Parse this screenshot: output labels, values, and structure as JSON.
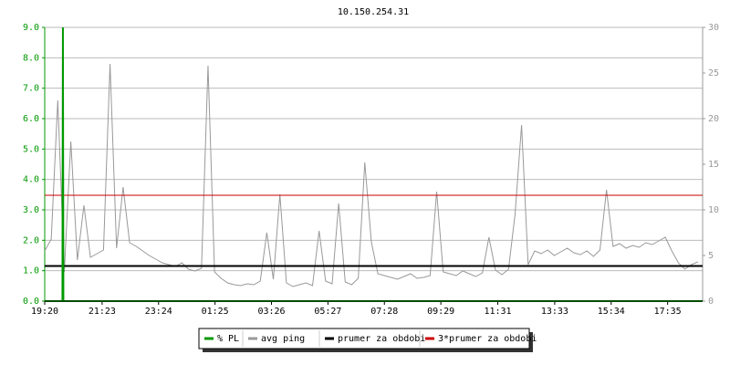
{
  "chart_data": {
    "type": "line",
    "title": "10.150.254.31",
    "xlim": [
      0,
      1410
    ],
    "xticks": [
      {
        "value": 0,
        "label": "19:20"
      },
      {
        "value": 123,
        "label": "21:23"
      },
      {
        "value": 244,
        "label": "23:24"
      },
      {
        "value": 365,
        "label": "01:25"
      },
      {
        "value": 486,
        "label": "03:26"
      },
      {
        "value": 607,
        "label": "05:27"
      },
      {
        "value": 728,
        "label": "07:28"
      },
      {
        "value": 849,
        "label": "09:29"
      },
      {
        "value": 971,
        "label": "11:31"
      },
      {
        "value": 1093,
        "label": "13:33"
      },
      {
        "value": 1214,
        "label": "15:34"
      },
      {
        "value": 1335,
        "label": "17:35"
      }
    ],
    "ylim": [
      0,
      9
    ],
    "yticks": [
      {
        "value": 0,
        "label": "0.0"
      },
      {
        "value": 1,
        "label": "1.0"
      },
      {
        "value": 2,
        "label": "2.0"
      },
      {
        "value": 3,
        "label": "3.0"
      },
      {
        "value": 4,
        "label": "4.0"
      },
      {
        "value": 5,
        "label": "5.0"
      },
      {
        "value": 6,
        "label": "6.0"
      },
      {
        "value": 7,
        "label": "7.0"
      },
      {
        "value": 8,
        "label": "8.0"
      },
      {
        "value": 9,
        "label": "9.0"
      }
    ],
    "y2lim": [
      0,
      30
    ],
    "y2ticks": [
      0,
      5,
      10,
      15,
      20,
      25,
      30
    ],
    "grid": true,
    "series": [
      {
        "name": "% PL",
        "color": "#009900",
        "x": [
          0,
          38,
          39,
          40,
          1410
        ],
        "values": [
          0,
          0,
          9,
          0,
          0
        ]
      },
      {
        "name": "avg ping",
        "color": "#999999",
        "axis": "y2",
        "x": [
          0,
          14,
          28,
          42,
          56,
          70,
          84,
          98,
          112,
          126,
          140,
          154,
          168,
          182,
          196,
          210,
          224,
          238,
          252,
          266,
          280,
          294,
          308,
          322,
          336,
          350,
          364,
          378,
          392,
          406,
          420,
          434,
          448,
          462,
          476,
          490,
          504,
          518,
          532,
          546,
          560,
          574,
          588,
          602,
          616,
          630,
          644,
          658,
          672,
          686,
          700,
          714,
          728,
          742,
          756,
          770,
          784,
          798,
          812,
          826,
          840,
          854,
          868,
          882,
          896,
          910,
          924,
          938,
          952,
          966,
          980,
          994,
          1008,
          1022,
          1036,
          1050,
          1064,
          1078,
          1092,
          1106,
          1120,
          1134,
          1148,
          1162,
          1176,
          1190,
          1204,
          1218,
          1232,
          1246,
          1260,
          1274,
          1288,
          1302,
          1316,
          1330,
          1344,
          1358,
          1372,
          1386,
          1400
        ],
        "values": [
          5.5,
          6.8,
          22,
          3.2,
          17.5,
          4.5,
          10.5,
          4.8,
          5.2,
          5.6,
          26,
          5.8,
          12.5,
          6.4,
          6.0,
          5.5,
          5.0,
          4.6,
          4.2,
          4.0,
          3.8,
          4.2,
          3.5,
          3.3,
          3.6,
          25.8,
          3.2,
          2.5,
          2.0,
          1.8,
          1.7,
          1.9,
          1.8,
          2.2,
          7.5,
          2.4,
          11.7,
          2.0,
          1.6,
          1.8,
          2.0,
          1.7,
          7.7,
          2.2,
          1.9,
          10.7,
          2.1,
          1.8,
          2.5,
          15.2,
          6.5,
          3.0,
          2.8,
          2.6,
          2.4,
          2.7,
          3.0,
          2.5,
          2.6,
          2.8,
          12.0,
          3.2,
          3.0,
          2.8,
          3.3,
          3.0,
          2.7,
          3.1,
          7.0,
          3.4,
          2.9,
          3.5,
          9.5,
          19.3,
          4.0,
          5.5,
          5.2,
          5.6,
          5.0,
          5.4,
          5.8,
          5.3,
          5.1,
          5.5,
          4.9,
          5.6,
          12.2,
          6.0,
          6.3,
          5.8,
          6.1,
          5.9,
          6.4,
          6.2,
          6.6,
          7.0,
          5.5,
          4.2,
          3.5,
          4.0,
          4.3
        ]
      },
      {
        "name": "prumer za obdobi",
        "color": "#000000",
        "axis": "y2",
        "value": 3.85
      },
      {
        "name": "3*prumer za obdobi",
        "color": "#cc0000",
        "axis": "y2",
        "value": 11.6
      }
    ]
  }
}
